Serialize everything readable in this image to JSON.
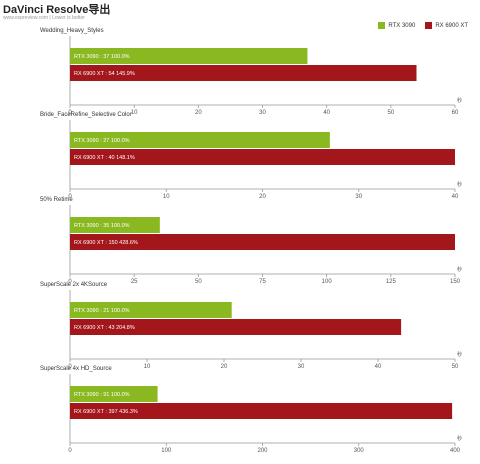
{
  "header": {
    "title": "DaVinci Resolve导出",
    "subtitle": "www.expreview.com | Lower is better"
  },
  "colors": {
    "rtx3090": "#8ab820",
    "rx6900xt": "#a3161c",
    "axis": "#999999",
    "grid": "#e6e6e6"
  },
  "legend": [
    {
      "name": "RTX 3090",
      "color_key": "rtx3090"
    },
    {
      "name": "RX 6900 XT",
      "color_key": "rx6900xt"
    }
  ],
  "chart_data": [
    {
      "type": "bar",
      "orientation": "horizontal",
      "title": "Wedding_Heavy_Styles",
      "unit": "秒",
      "xlim": [
        0,
        60
      ],
      "ticks": [
        0,
        10,
        20,
        30,
        40,
        50,
        60
      ],
      "grid": false,
      "series": [
        {
          "name": "RTX 3090",
          "value": 37,
          "label": "RTX 3090 : 37  100.0%"
        },
        {
          "name": "RX 6900 XT",
          "value": 54,
          "label": "RX 6900 XT : 54  145.9%"
        }
      ]
    },
    {
      "type": "bar",
      "orientation": "horizontal",
      "title": "Bride_FaceRefine_Selective Color",
      "unit": "秒",
      "xlim": [
        0,
        40
      ],
      "ticks": [
        0,
        10,
        20,
        30,
        40
      ],
      "grid": false,
      "series": [
        {
          "name": "RTX 3090",
          "value": 27,
          "label": "RTX 3090 : 27  100.0%"
        },
        {
          "name": "RX 6900 XT",
          "value": 40,
          "label": "RX 6900 XT : 40  148.1%"
        }
      ]
    },
    {
      "type": "bar",
      "orientation": "horizontal",
      "title": "50% Retime",
      "unit": "秒",
      "xlim": [
        0,
        150
      ],
      "ticks": [
        0,
        25,
        50,
        75,
        100,
        125,
        150
      ],
      "grid": false,
      "series": [
        {
          "name": "RTX 3090",
          "value": 35,
          "label": "RTX 3090 : 35  100.0%"
        },
        {
          "name": "RX 6900 XT",
          "value": 150,
          "label": "RX 6900 XT : 150  428.6%"
        }
      ]
    },
    {
      "type": "bar",
      "orientation": "horizontal",
      "title": "SuperScale 2x 4KSource",
      "unit": "秒",
      "xlim": [
        0,
        50
      ],
      "ticks": [
        0,
        10,
        20,
        30,
        40,
        50
      ],
      "grid": false,
      "series": [
        {
          "name": "RTX 3090",
          "value": 21,
          "label": "RTX 3090 : 21  100.0%"
        },
        {
          "name": "RX 6900 XT",
          "value": 43,
          "label": "RX 6900 XT : 43  204.8%"
        }
      ]
    },
    {
      "type": "bar",
      "orientation": "horizontal",
      "title": "SuperScale 4x HD_Source",
      "unit": "秒",
      "xlim": [
        0,
        400
      ],
      "ticks": [
        0,
        100,
        200,
        300,
        400
      ],
      "grid": false,
      "series": [
        {
          "name": "RTX 3090",
          "value": 91,
          "label": "RTX 3090 : 91  100.0%"
        },
        {
          "name": "RX 6900 XT",
          "value": 397,
          "label": "RX 6900 XT : 397  436.3%"
        }
      ]
    }
  ]
}
